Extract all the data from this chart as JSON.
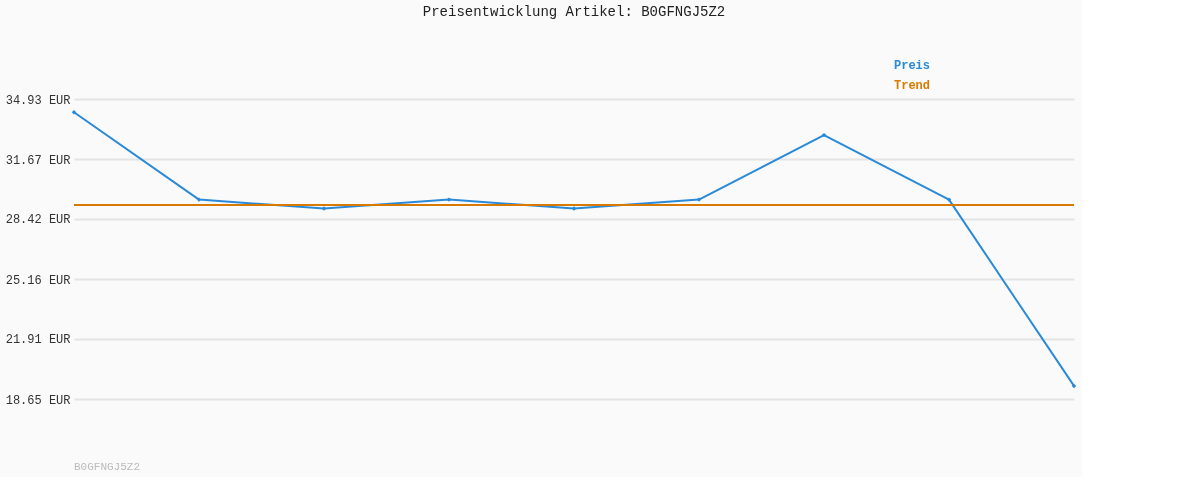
{
  "chart_data": {
    "type": "line",
    "title": "Preisentwicklung Artikel: B0GFNGJ5Z2",
    "categories": [
      null,
      null,
      null,
      null,
      null,
      null,
      null,
      null,
      null
    ],
    "series": [
      {
        "name": "Preis",
        "color": "#2a8ad8",
        "marker": "diamond",
        "values": [
          34.21,
          29.47,
          28.99,
          29.47,
          28.99,
          29.47,
          32.97,
          29.47,
          19.36
        ]
      },
      {
        "name": "Trend",
        "color": "#d97a00",
        "marker": "none",
        "values": [
          29.18,
          29.18,
          29.18,
          29.18,
          29.18,
          29.18,
          29.18,
          29.18,
          29.18
        ]
      }
    ],
    "ylim": [
      18.65,
      34.93
    ],
    "yticks": [
      {
        "value": 18.65,
        "label": "18.65 EUR"
      },
      {
        "value": 21.91,
        "label": "21.91 EUR"
      },
      {
        "value": 25.16,
        "label": "25.16 EUR"
      },
      {
        "value": 28.42,
        "label": "28.42 EUR"
      },
      {
        "value": 31.67,
        "label": "31.67 EUR"
      },
      {
        "value": 34.93,
        "label": "34.93 EUR"
      }
    ],
    "grid": "y",
    "legend": "top right",
    "tick_labels": "y",
    "annotations": [
      "B0GFNGJ5Z2"
    ]
  }
}
